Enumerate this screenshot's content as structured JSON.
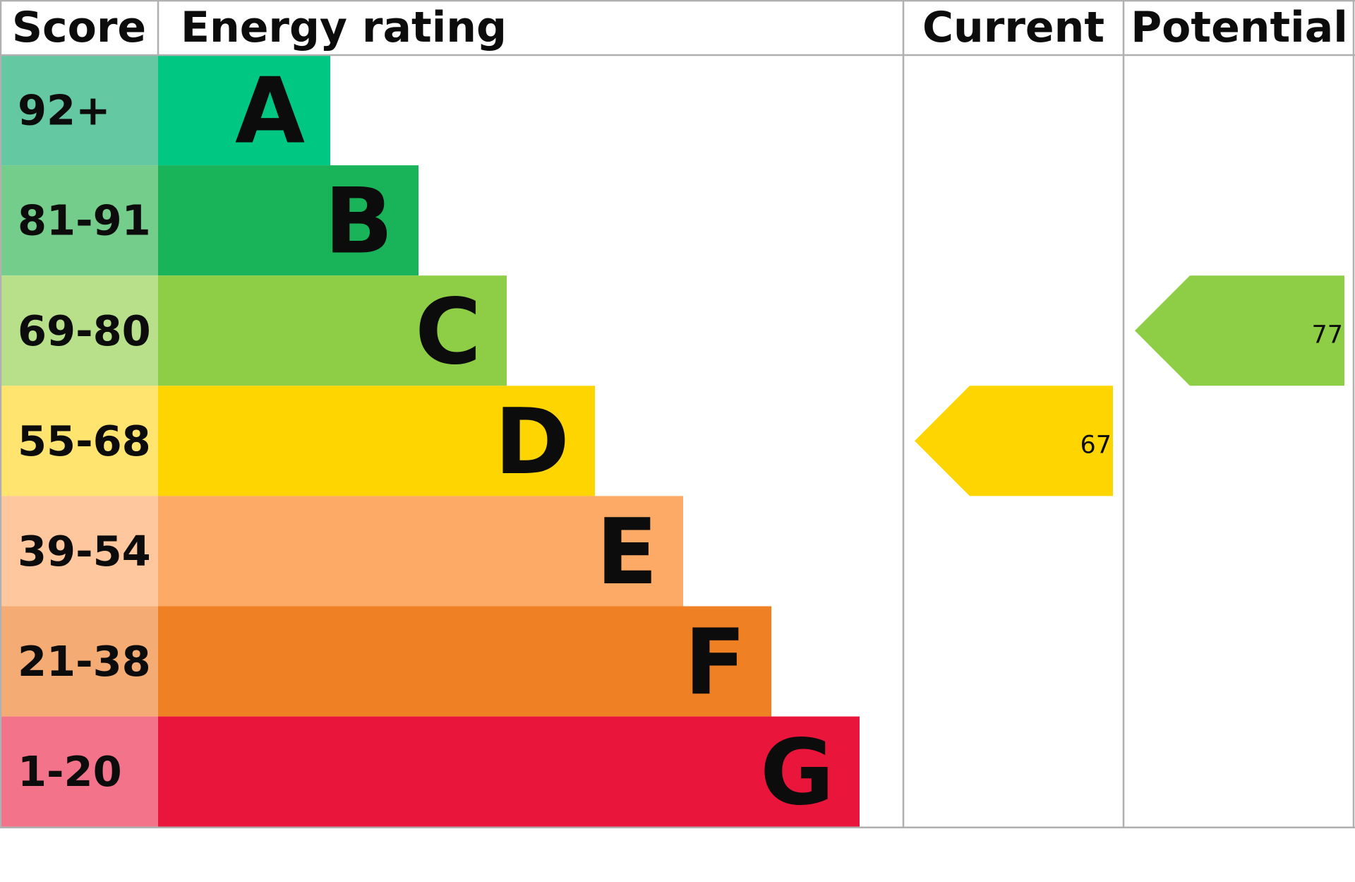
{
  "chart_data": {
    "type": "epc",
    "headers": [
      "Score",
      "Energy rating",
      "Current",
      "Potential"
    ],
    "bands": [
      {
        "score": "92+",
        "letter": "A",
        "color": "#00c781",
        "score_color": "#64c8a3"
      },
      {
        "score": "81-91",
        "letter": "B",
        "color": "#19b459",
        "score_color": "#75cd8b"
      },
      {
        "score": "69-80",
        "letter": "C",
        "color": "#8dce46",
        "score_color": "#b8e08a"
      },
      {
        "score": "55-68",
        "letter": "D",
        "color": "#ffd500",
        "score_color": "#ffe46f"
      },
      {
        "score": "39-54",
        "letter": "E",
        "color": "#fcaa65",
        "score_color": "#fec79d"
      },
      {
        "score": "21-38",
        "letter": "F",
        "color": "#ef8023",
        "score_color": "#f4ab74"
      },
      {
        "score": "1-20",
        "letter": "G",
        "color": "#e9153b",
        "score_color": "#f3748a"
      }
    ],
    "current": {
      "value": 67
    },
    "potential": {
      "value": 77
    }
  }
}
